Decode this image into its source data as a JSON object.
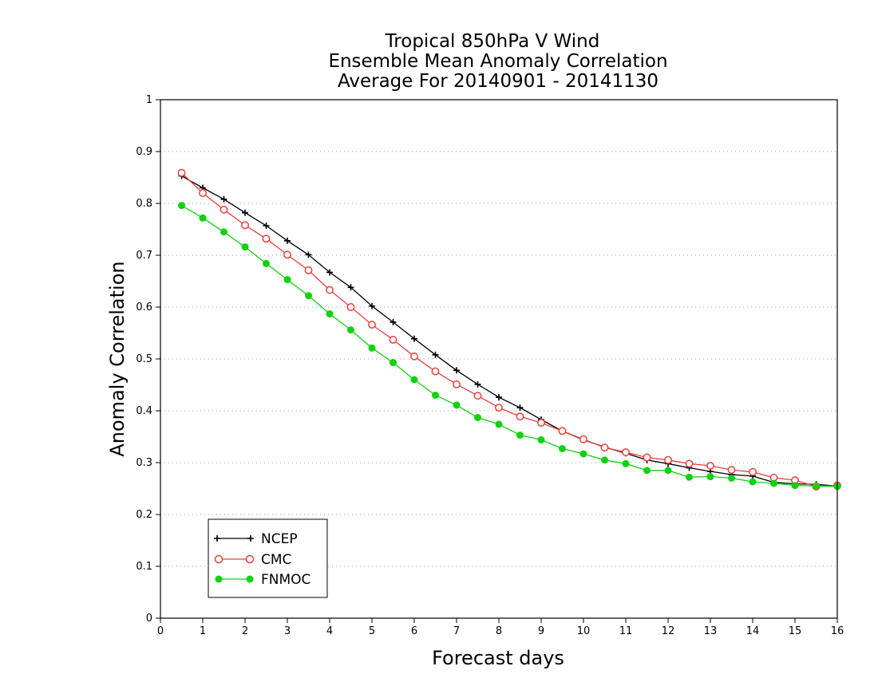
{
  "chart_data": {
    "type": "line",
    "title_lines": [
      "Tropical 850hPa V Wind",
      "Ensemble Mean Anomaly Correlation",
      "Average For 20140901 - 20141130"
    ],
    "xlabel": "Forecast days",
    "ylabel": "Anomaly Correlation",
    "xlim": [
      0,
      16
    ],
    "ylim": [
      0,
      1
    ],
    "x_ticks": [
      "0",
      "1",
      "2",
      "3",
      "4",
      "5",
      "6",
      "7",
      "8",
      "9",
      "10",
      "11",
      "12",
      "13",
      "14",
      "15",
      "16"
    ],
    "y_ticks": [
      "0",
      "0.1",
      "0.2",
      "0.3",
      "0.4",
      "0.5",
      "0.6",
      "0.7",
      "0.8",
      "0.9",
      "1"
    ],
    "grid": "horizontal dotted",
    "legend_position": "bottom-left",
    "x": [
      0.5,
      1,
      1.5,
      2,
      2.5,
      3,
      3.5,
      4,
      4.5,
      5,
      5.5,
      6,
      6.5,
      7,
      7.5,
      8,
      8.5,
      9,
      9.5,
      10,
      10.5,
      11,
      11.5,
      12,
      12.5,
      13,
      13.5,
      14,
      14.5,
      15,
      15.5,
      16
    ],
    "series": [
      {
        "name": "NCEP",
        "color": "#000000",
        "marker": "plus",
        "values": [
          0.853,
          0.83,
          0.808,
          0.782,
          0.757,
          0.728,
          0.701,
          0.667,
          0.638,
          0.602,
          0.571,
          0.539,
          0.508,
          0.478,
          0.451,
          0.426,
          0.406,
          0.383,
          0.361,
          0.344,
          0.33,
          0.318,
          0.305,
          0.298,
          0.29,
          0.283,
          0.277,
          0.274,
          0.262,
          0.259,
          0.258,
          0.255
        ]
      },
      {
        "name": "CMC",
        "color": "#e8403c",
        "marker": "open-circle",
        "values": [
          0.859,
          0.82,
          0.788,
          0.758,
          0.732,
          0.701,
          0.671,
          0.633,
          0.6,
          0.566,
          0.537,
          0.505,
          0.476,
          0.451,
          0.429,
          0.406,
          0.389,
          0.377,
          0.361,
          0.345,
          0.329,
          0.32,
          0.31,
          0.305,
          0.298,
          0.294,
          0.286,
          0.282,
          0.271,
          0.266,
          0.254,
          0.256
        ]
      },
      {
        "name": "FNMOC",
        "color": "#11d111",
        "marker": "filled-circle",
        "values": [
          0.796,
          0.772,
          0.745,
          0.716,
          0.684,
          0.653,
          0.622,
          0.587,
          0.556,
          0.521,
          0.493,
          0.46,
          0.43,
          0.411,
          0.387,
          0.374,
          0.353,
          0.344,
          0.327,
          0.317,
          0.305,
          0.298,
          0.285,
          0.285,
          0.272,
          0.273,
          0.27,
          0.263,
          0.26,
          0.256,
          0.255,
          0.254
        ]
      }
    ]
  }
}
